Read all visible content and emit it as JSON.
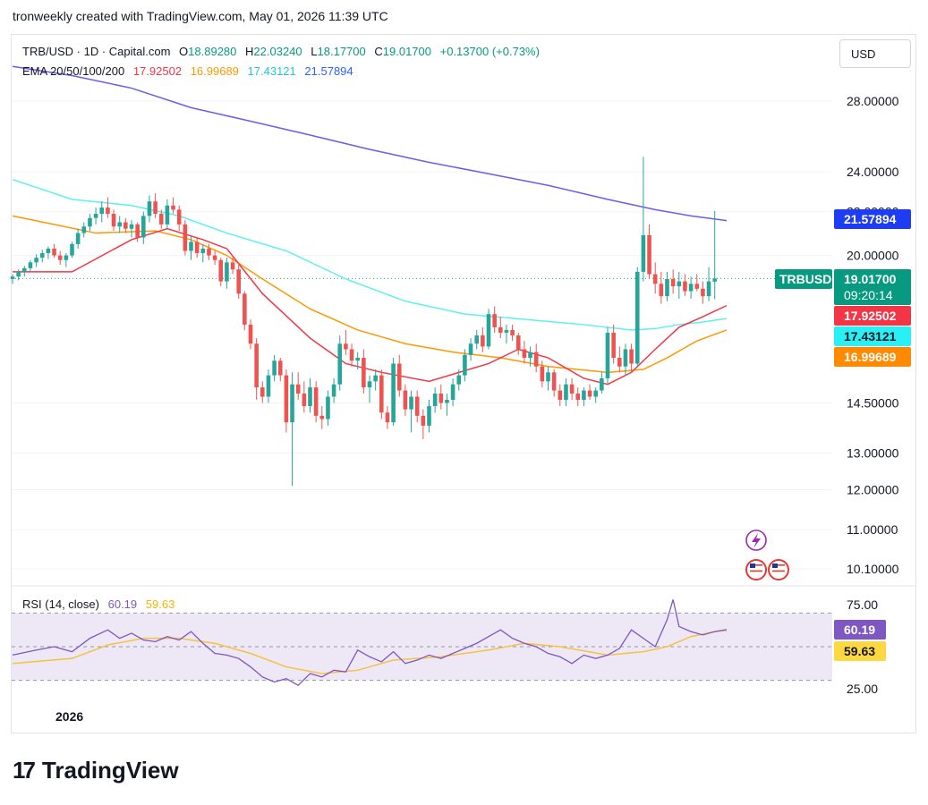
{
  "header": {
    "attribution": "tronweekly created with TradingView.com, May 01, 2026 11:39 UTC"
  },
  "legend": {
    "symbol": "TRB/USD · 1D · Capital.com",
    "open_label": "O",
    "open": "18.89280",
    "high_label": "H",
    "high": "22.03240",
    "low_label": "L",
    "low": "18.17700",
    "close_label": "C",
    "close": "19.01700",
    "change": "+0.13700 (+0.73%)",
    "ema_label": "EMA 20/50/100/200",
    "ema20": "17.92502",
    "ema50": "16.99689",
    "ema100": "17.43121",
    "ema200": "21.57894"
  },
  "rsi_legend": {
    "label": "RSI (14, close)",
    "rsi": "60.19",
    "ma": "59.63"
  },
  "currency_button": "USD",
  "price_labels": {
    "ema200": "21.57894",
    "symbol_tag": "TRBUSD",
    "last": "19.01700",
    "countdown": "09:20:14",
    "ema20": "17.92502",
    "ema100": "17.43121",
    "ema50": "16.99689",
    "rsi": "60.19",
    "rsi_ma": "59.63"
  },
  "x_tick": "2026",
  "footer": {
    "logo_text": "TradingView",
    "logo_mark": "17"
  },
  "colors": {
    "up": "#26a69a",
    "down": "#ef5350",
    "ema20": "#f23645",
    "ema50": "#ff9800",
    "ema100": "#5ef0f0",
    "ema200": "#6a5cf0",
    "rsi": "#7e57c2",
    "rsi_ma": "#f5c242",
    "rsi_band": "#ede7f6"
  },
  "chart_data": {
    "type": "candlestick",
    "title": "TRB/USD · 1D · Capital.com",
    "price_axis_ticks": [
      "28.00000",
      "24.00000",
      "22.00000",
      "20.00000",
      "14.50000",
      "13.00000",
      "12.00000",
      "11.00000",
      "10.10000"
    ],
    "rsi_axis_ticks": [
      "75.00",
      "25.00"
    ],
    "ohlc": [
      [
        19.0,
        19.2,
        18.8,
        19.1
      ],
      [
        19.1,
        19.4,
        18.95,
        19.3
      ],
      [
        19.3,
        19.55,
        19.1,
        19.45
      ],
      [
        19.45,
        19.8,
        19.3,
        19.7
      ],
      [
        19.7,
        20.05,
        19.5,
        19.9
      ],
      [
        19.9,
        20.25,
        19.7,
        20.1
      ],
      [
        20.1,
        20.4,
        19.85,
        20.3
      ],
      [
        20.3,
        20.5,
        19.9,
        20.0
      ],
      [
        20.0,
        20.2,
        19.6,
        19.8
      ],
      [
        19.8,
        20.1,
        19.5,
        20.0
      ],
      [
        20.0,
        20.6,
        19.9,
        20.5
      ],
      [
        20.5,
        21.2,
        20.3,
        21.0
      ],
      [
        21.0,
        21.5,
        20.8,
        21.3
      ],
      [
        21.3,
        21.9,
        21.1,
        21.7
      ],
      [
        21.7,
        22.2,
        21.4,
        21.9
      ],
      [
        21.9,
        22.5,
        21.5,
        22.2
      ],
      [
        22.2,
        22.7,
        21.7,
        21.9
      ],
      [
        21.9,
        22.1,
        21.1,
        21.3
      ],
      [
        21.3,
        21.8,
        21.0,
        21.5
      ],
      [
        21.5,
        21.7,
        21.0,
        21.2
      ],
      [
        21.2,
        21.6,
        20.8,
        21.4
      ],
      [
        21.4,
        21.5,
        20.6,
        20.8
      ],
      [
        20.8,
        22.0,
        20.5,
        21.8
      ],
      [
        21.8,
        22.8,
        21.5,
        22.5
      ],
      [
        22.5,
        22.9,
        21.7,
        21.9
      ],
      [
        21.9,
        22.1,
        21.2,
        21.4
      ],
      [
        21.4,
        22.6,
        21.2,
        22.3
      ],
      [
        22.3,
        22.7,
        21.9,
        22.1
      ],
      [
        22.1,
        22.3,
        21.1,
        21.4
      ],
      [
        21.4,
        21.6,
        20.0,
        20.2
      ],
      [
        20.2,
        20.9,
        19.8,
        20.6
      ],
      [
        20.6,
        20.8,
        19.9,
        20.1
      ],
      [
        20.1,
        20.5,
        19.7,
        20.3
      ],
      [
        20.3,
        20.5,
        19.8,
        20.0
      ],
      [
        20.0,
        20.2,
        19.6,
        19.8
      ],
      [
        19.8,
        19.9,
        18.7,
        18.9
      ],
      [
        18.9,
        19.9,
        18.6,
        19.7
      ],
      [
        19.7,
        19.9,
        19.2,
        19.4
      ],
      [
        19.4,
        19.6,
        18.2,
        18.4
      ],
      [
        18.4,
        18.5,
        17.0,
        17.2
      ],
      [
        17.2,
        17.4,
        16.3,
        16.5
      ],
      [
        16.5,
        16.7,
        14.6,
        15.0
      ],
      [
        15.0,
        15.2,
        14.5,
        14.7
      ],
      [
        14.7,
        15.6,
        14.5,
        15.4
      ],
      [
        15.4,
        16.1,
        15.2,
        15.9
      ],
      [
        15.9,
        16.0,
        15.2,
        15.4
      ],
      [
        15.4,
        15.6,
        13.6,
        13.9
      ],
      [
        13.9,
        15.5,
        12.1,
        15.1
      ],
      [
        15.1,
        15.5,
        14.6,
        14.8
      ],
      [
        14.8,
        15.2,
        14.2,
        14.4
      ],
      [
        14.4,
        15.3,
        14.2,
        15.0
      ],
      [
        15.0,
        15.2,
        13.9,
        14.1
      ],
      [
        14.1,
        14.4,
        13.7,
        14.0
      ],
      [
        14.0,
        14.9,
        13.8,
        14.7
      ],
      [
        14.7,
        15.3,
        14.5,
        15.1
      ],
      [
        15.1,
        16.8,
        14.9,
        16.5
      ],
      [
        16.5,
        17.0,
        16.1,
        16.3
      ],
      [
        16.3,
        16.5,
        15.7,
        15.9
      ],
      [
        15.9,
        16.2,
        15.6,
        16.0
      ],
      [
        16.0,
        16.3,
        14.8,
        15.0
      ],
      [
        15.0,
        15.4,
        14.5,
        15.2
      ],
      [
        15.2,
        15.6,
        14.9,
        15.4
      ],
      [
        15.4,
        15.6,
        14.0,
        14.2
      ],
      [
        14.2,
        14.4,
        13.7,
        13.9
      ],
      [
        13.9,
        16.0,
        13.8,
        15.8
      ],
      [
        15.8,
        16.1,
        14.7,
        14.9
      ],
      [
        14.9,
        15.1,
        14.1,
        14.3
      ],
      [
        14.3,
        14.9,
        13.6,
        14.7
      ],
      [
        14.7,
        14.9,
        13.9,
        14.1
      ],
      [
        14.1,
        14.3,
        13.4,
        13.8
      ],
      [
        13.8,
        14.6,
        13.6,
        14.4
      ],
      [
        14.4,
        15.0,
        14.2,
        14.8
      ],
      [
        14.8,
        15.1,
        14.3,
        14.5
      ],
      [
        14.5,
        14.8,
        14.1,
        14.6
      ],
      [
        14.6,
        15.3,
        14.4,
        15.1
      ],
      [
        15.1,
        15.6,
        14.9,
        15.4
      ],
      [
        15.4,
        16.3,
        15.2,
        16.1
      ],
      [
        16.1,
        16.7,
        15.9,
        16.5
      ],
      [
        16.5,
        17.0,
        16.3,
        16.8
      ],
      [
        16.8,
        17.1,
        16.2,
        16.4
      ],
      [
        16.4,
        17.8,
        16.3,
        17.6
      ],
      [
        17.6,
        17.9,
        16.9,
        17.1
      ],
      [
        17.1,
        17.5,
        16.7,
        16.9
      ],
      [
        16.9,
        17.2,
        16.5,
        17.0
      ],
      [
        17.0,
        17.2,
        16.6,
        16.8
      ],
      [
        16.8,
        16.9,
        16.1,
        16.3
      ],
      [
        16.3,
        16.6,
        15.8,
        16.0
      ],
      [
        16.0,
        16.4,
        15.7,
        16.2
      ],
      [
        16.2,
        16.5,
        15.5,
        15.7
      ],
      [
        15.7,
        15.9,
        15.0,
        15.2
      ],
      [
        15.2,
        15.7,
        14.9,
        15.5
      ],
      [
        15.5,
        15.6,
        14.7,
        14.9
      ],
      [
        14.9,
        15.1,
        14.4,
        14.6
      ],
      [
        14.6,
        15.3,
        14.4,
        15.1
      ],
      [
        15.1,
        15.3,
        14.6,
        14.8
      ],
      [
        14.8,
        15.0,
        14.4,
        14.6
      ],
      [
        14.6,
        15.0,
        14.4,
        14.9
      ],
      [
        14.9,
        15.1,
        14.6,
        14.7
      ],
      [
        14.7,
        15.0,
        14.5,
        14.9
      ],
      [
        14.9,
        15.5,
        14.8,
        15.3
      ],
      [
        15.3,
        17.1,
        15.1,
        16.9
      ],
      [
        16.9,
        17.2,
        15.8,
        16.0
      ],
      [
        16.0,
        16.4,
        15.5,
        15.7
      ],
      [
        15.7,
        16.5,
        15.4,
        16.3
      ],
      [
        16.3,
        16.5,
        15.5,
        15.8
      ],
      [
        15.8,
        19.5,
        15.7,
        19.3
      ],
      [
        19.3,
        24.8,
        18.9,
        20.9
      ],
      [
        20.9,
        21.4,
        19.0,
        19.2
      ],
      [
        19.2,
        19.7,
        18.4,
        18.8
      ],
      [
        18.8,
        19.3,
        18.0,
        18.3
      ],
      [
        18.3,
        19.3,
        18.1,
        19.0
      ],
      [
        19.0,
        19.4,
        18.4,
        18.7
      ],
      [
        18.7,
        19.3,
        18.2,
        18.9
      ],
      [
        18.9,
        19.2,
        18.3,
        18.5
      ],
      [
        18.5,
        19.1,
        18.2,
        18.8
      ],
      [
        18.8,
        19.2,
        18.5,
        18.6
      ],
      [
        18.6,
        18.9,
        18.0,
        18.3
      ],
      [
        18.3,
        19.5,
        18.1,
        18.9
      ],
      [
        18.89,
        22.03,
        18.18,
        19.02
      ]
    ],
    "ema": {
      "ema20": [
        [
          0,
          19.3
        ],
        [
          10,
          19.3
        ],
        [
          20,
          20.7
        ],
        [
          26,
          21.2
        ],
        [
          32,
          20.7
        ],
        [
          36,
          20.3
        ],
        [
          42,
          18.4
        ],
        [
          50,
          16.7
        ],
        [
          56,
          15.8
        ],
        [
          62,
          15.5
        ],
        [
          70,
          15.2
        ],
        [
          80,
          15.8
        ],
        [
          85,
          16.3
        ],
        [
          90,
          16.0
        ],
        [
          96,
          15.3
        ],
        [
          100,
          15.1
        ],
        [
          104,
          15.5
        ],
        [
          108,
          16.3
        ],
        [
          112,
          17.1
        ],
        [
          116,
          17.5
        ],
        [
          120,
          17.93
        ]
      ],
      "ema50": [
        [
          0,
          21.8
        ],
        [
          14,
          21.0
        ],
        [
          24,
          21.1
        ],
        [
          30,
          20.7
        ],
        [
          36,
          20.0
        ],
        [
          42,
          19.0
        ],
        [
          50,
          17.8
        ],
        [
          58,
          17.0
        ],
        [
          66,
          16.5
        ],
        [
          74,
          16.2
        ],
        [
          82,
          16.0
        ],
        [
          90,
          15.7
        ],
        [
          100,
          15.5
        ],
        [
          106,
          15.6
        ],
        [
          110,
          16.0
        ],
        [
          115,
          16.6
        ],
        [
          120,
          17.0
        ]
      ],
      "ema100": [
        [
          0,
          23.6
        ],
        [
          10,
          22.6
        ],
        [
          20,
          22.3
        ],
        [
          28,
          21.8
        ],
        [
          36,
          21.0
        ],
        [
          46,
          20.2
        ],
        [
          56,
          19.0
        ],
        [
          66,
          18.1
        ],
        [
          76,
          17.6
        ],
        [
          86,
          17.4
        ],
        [
          96,
          17.2
        ],
        [
          104,
          17.0
        ],
        [
          108,
          17.05
        ],
        [
          112,
          17.2
        ],
        [
          116,
          17.3
        ],
        [
          120,
          17.43
        ]
      ],
      "ema200": [
        [
          0,
          30.2
        ],
        [
          10,
          29.6
        ],
        [
          20,
          28.8
        ],
        [
          30,
          27.6
        ],
        [
          40,
          26.8
        ],
        [
          50,
          26.0
        ],
        [
          60,
          25.2
        ],
        [
          70,
          24.5
        ],
        [
          80,
          23.9
        ],
        [
          90,
          23.3
        ],
        [
          100,
          22.6
        ],
        [
          108,
          22.1
        ],
        [
          114,
          21.8
        ],
        [
          120,
          21.58
        ]
      ]
    },
    "rsi": {
      "series": [
        [
          0,
          45
        ],
        [
          4,
          48
        ],
        [
          7,
          50
        ],
        [
          10,
          47
        ],
        [
          13,
          55
        ],
        [
          16,
          60
        ],
        [
          18,
          55
        ],
        [
          20,
          58
        ],
        [
          22,
          54
        ],
        [
          24,
          53
        ],
        [
          26,
          56
        ],
        [
          28,
          54
        ],
        [
          30,
          59
        ],
        [
          32,
          52
        ],
        [
          34,
          46
        ],
        [
          36,
          45
        ],
        [
          38,
          43
        ],
        [
          40,
          38
        ],
        [
          42,
          32
        ],
        [
          44,
          29
        ],
        [
          46,
          31
        ],
        [
          48,
          27
        ],
        [
          50,
          34
        ],
        [
          52,
          32
        ],
        [
          54,
          36
        ],
        [
          56,
          35
        ],
        [
          58,
          48
        ],
        [
          60,
          44
        ],
        [
          62,
          41
        ],
        [
          64,
          47
        ],
        [
          66,
          40
        ],
        [
          68,
          42
        ],
        [
          70,
          45
        ],
        [
          72,
          43
        ],
        [
          74,
          46
        ],
        [
          76,
          49
        ],
        [
          78,
          52
        ],
        [
          80,
          56
        ],
        [
          82,
          60
        ],
        [
          84,
          55
        ],
        [
          86,
          52
        ],
        [
          88,
          50
        ],
        [
          90,
          46
        ],
        [
          92,
          44
        ],
        [
          94,
          40
        ],
        [
          96,
          45
        ],
        [
          98,
          43
        ],
        [
          100,
          45
        ],
        [
          102,
          49
        ],
        [
          104,
          60
        ],
        [
          106,
          55
        ],
        [
          108,
          50
        ],
        [
          110,
          66
        ],
        [
          111,
          78
        ],
        [
          112,
          62
        ],
        [
          114,
          59
        ],
        [
          116,
          57
        ],
        [
          118,
          59
        ],
        [
          120,
          60.19
        ]
      ],
      "ma": [
        [
          0,
          40
        ],
        [
          10,
          43
        ],
        [
          16,
          51
        ],
        [
          22,
          55
        ],
        [
          28,
          55
        ],
        [
          34,
          52
        ],
        [
          40,
          46
        ],
        [
          46,
          38
        ],
        [
          52,
          34
        ],
        [
          58,
          36
        ],
        [
          64,
          42
        ],
        [
          72,
          44
        ],
        [
          80,
          48
        ],
        [
          86,
          52
        ],
        [
          92,
          50
        ],
        [
          100,
          45
        ],
        [
          106,
          47
        ],
        [
          110,
          50
        ],
        [
          114,
          56
        ],
        [
          118,
          59
        ],
        [
          120,
          59.63
        ]
      ],
      "levels": [
        70,
        50,
        30
      ]
    }
  }
}
